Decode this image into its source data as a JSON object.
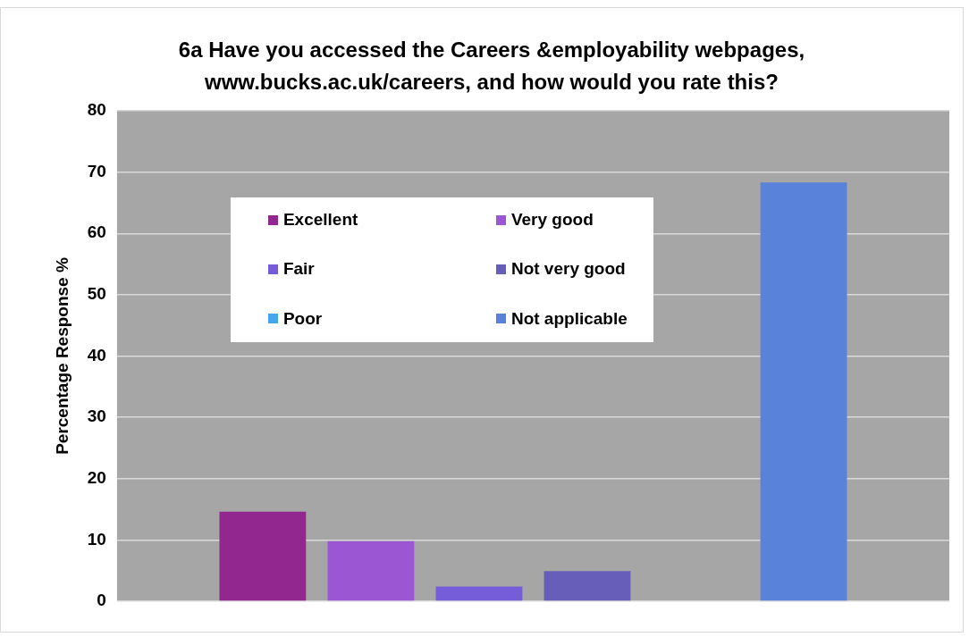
{
  "chart_data": {
    "type": "bar",
    "title": "6a  Have you accessed the Careers &employability webpages, www.bucks.ac.uk/careers, and how would you rate this?",
    "ylabel": "Percentage Response %",
    "categories": [
      null
    ],
    "series": [
      {
        "name": "Excellent",
        "color": "#92278f",
        "values": [
          14.6
        ]
      },
      {
        "name": "Very good",
        "color": "#9b57d3",
        "values": [
          9.8
        ]
      },
      {
        "name": "Fair",
        "color": "#755dd9",
        "values": [
          2.4
        ]
      },
      {
        "name": "Not very good",
        "color": "#665eb8",
        "values": [
          4.9
        ]
      },
      {
        "name": "Poor",
        "color": "#45a5ed",
        "values": [
          0
        ]
      },
      {
        "name": "Not applicable",
        "color": "#5982db",
        "values": [
          68.3
        ]
      }
    ],
    "ylim": [
      0,
      80
    ],
    "yticks": [
      0,
      10,
      20,
      30,
      40,
      50,
      60,
      70,
      80
    ],
    "grid": "y",
    "legend": "top left"
  }
}
